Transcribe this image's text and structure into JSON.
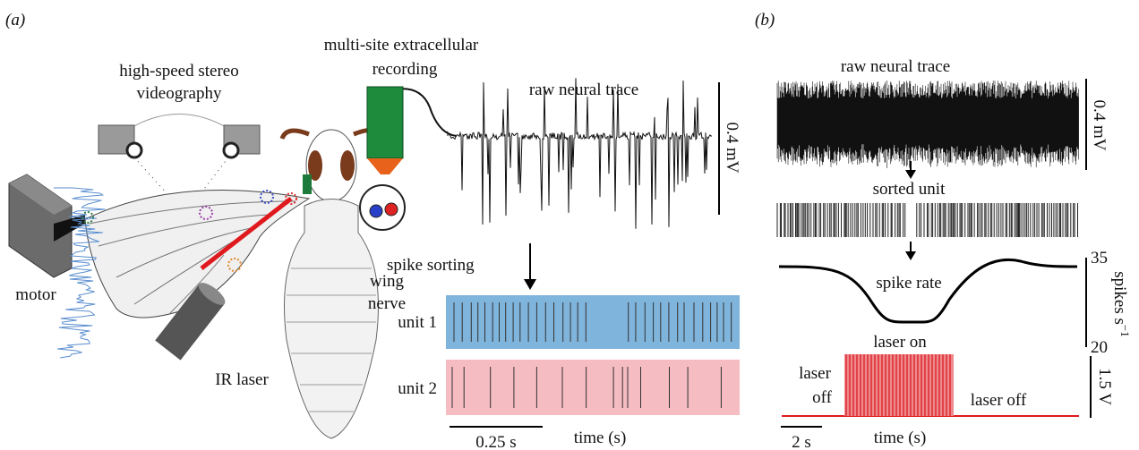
{
  "panel_a": {
    "label": "(a)",
    "recording_label": [
      "multi-site extracellular",
      "recording"
    ],
    "videography_label": [
      "high-speed stereo",
      "videography"
    ],
    "raw_trace_label": "raw neural trace",
    "voltage_scale": "0.4 mV",
    "motor_label": "motor",
    "nerve_label": [
      "wing",
      "nerve"
    ],
    "sorting_label": "spike sorting",
    "units": [
      "unit 1",
      "unit 2"
    ],
    "laser_label": "IR laser",
    "time_scale": "0.25 s",
    "time_label": "time (s)"
  },
  "panel_b": {
    "label": "(b)",
    "raw_trace_label": "raw neural trace",
    "voltage_scale": "0.4 mV",
    "sorted_label": "sorted unit",
    "rate_label": "spike rate",
    "rate_ticks": [
      35,
      20
    ],
    "rate_unit": {
      "text": "spikes s",
      "superscript": "−1"
    },
    "laser_on_label": "laser on",
    "laser_off_left": [
      "laser",
      "off"
    ],
    "laser_off_right": "laser off",
    "laser_scale": "1.5 V",
    "time_scale": "2 s",
    "time_label": "time (s)"
  }
}
